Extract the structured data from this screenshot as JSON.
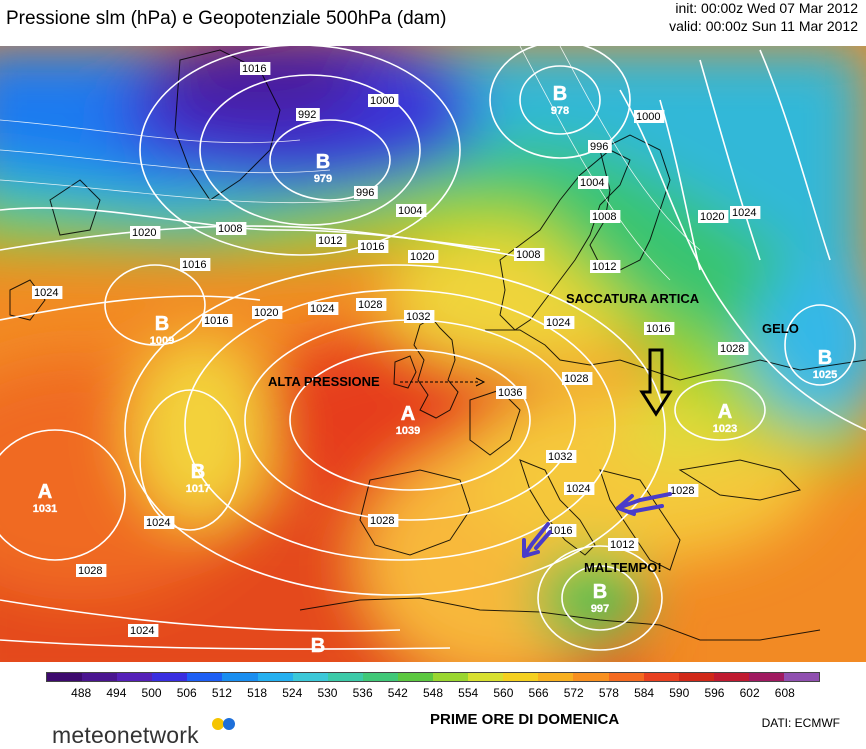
{
  "title": "Pressione slm (hPa) e Geopotenziale 500hPa (dam)",
  "init": "init: 00:00z Wed 07 Mar 2012",
  "valid": "valid: 00:00z Sun 11 Mar 2012",
  "centers": [
    {
      "letter": "B",
      "value": "978"
    },
    {
      "letter": "B",
      "value": "979"
    },
    {
      "letter": "B",
      "value": "1009"
    },
    {
      "letter": "B",
      "value": "1017"
    },
    {
      "letter": "A",
      "value": "1031"
    },
    {
      "letter": "A",
      "value": "1039"
    },
    {
      "letter": "A",
      "value": "1023"
    },
    {
      "letter": "B",
      "value": "1025"
    },
    {
      "letter": "B",
      "value": "997"
    },
    {
      "letter": "B",
      "value": ""
    }
  ],
  "isobar_labels": [
    "1016",
    "992",
    "996",
    "1000",
    "1004",
    "1008",
    "1012",
    "1016",
    "1020",
    "1020",
    "1016",
    "1024",
    "1016",
    "1020",
    "1024",
    "1028",
    "1032",
    "1024",
    "1028",
    "1036",
    "1032",
    "1024",
    "1028",
    "1028",
    "1016",
    "1012",
    "1028",
    "1024",
    "1024",
    "1028",
    "996",
    "1000",
    "1004",
    "1008",
    "1012",
    "1016",
    "1020",
    "1024",
    "1008"
  ],
  "annotations": {
    "alta_pressione": "ALTA PRESSIONE",
    "saccatura": "SACCATURA ARTICA",
    "gelo": "GELO",
    "maltempo": "MALTEMPO!"
  },
  "colorbar": {
    "ticks": [
      "488",
      "494",
      "500",
      "506",
      "512",
      "518",
      "524",
      "530",
      "536",
      "542",
      "548",
      "554",
      "560",
      "566",
      "572",
      "578",
      "584",
      "590",
      "596",
      "602",
      "608"
    ],
    "colors": [
      "#3d0a6e",
      "#4a1590",
      "#5520b8",
      "#3a2ee0",
      "#1e5ff5",
      "#1a8ef0",
      "#25b0f0",
      "#3cc8d8",
      "#3ccaa8",
      "#40c878",
      "#5cc840",
      "#9ad630",
      "#d8e030",
      "#f5d020",
      "#f8b020",
      "#f89020",
      "#f46a20",
      "#e84020",
      "#d02818",
      "#c01a30",
      "#a01a60",
      "#9050b0"
    ]
  },
  "logo": "meteonetwork",
  "caption": "PRIME ORE DI DOMENICA",
  "source": "DATI:  ECMWF"
}
